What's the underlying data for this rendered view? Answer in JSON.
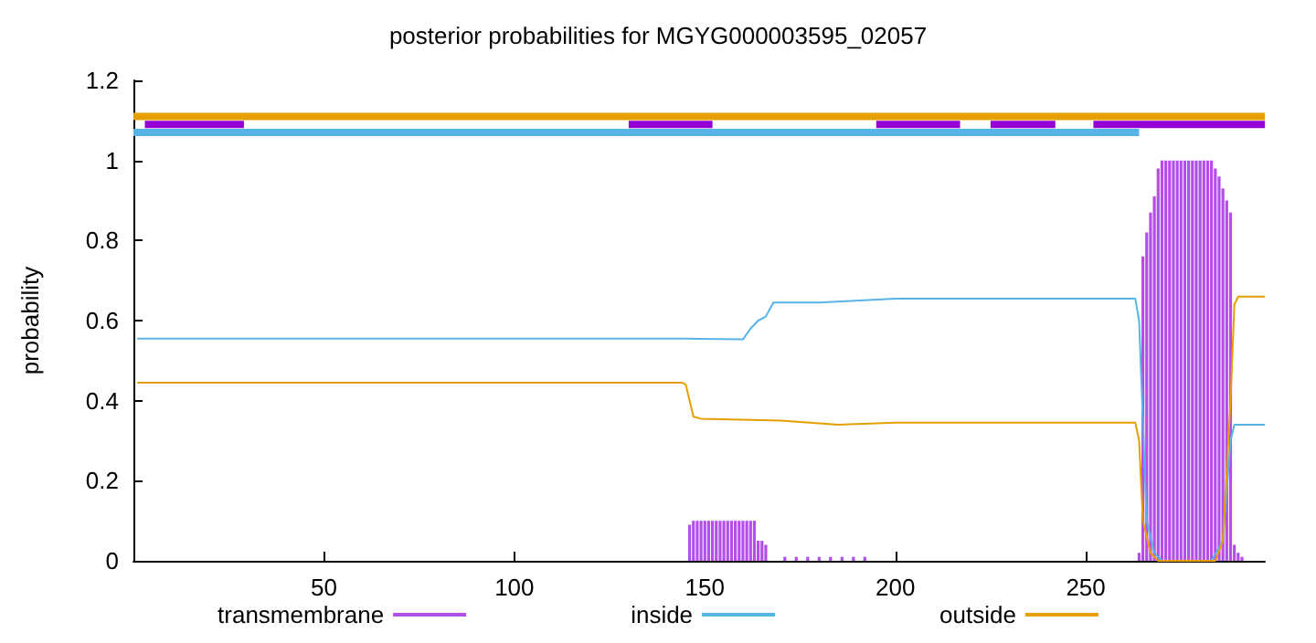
{
  "chart_data": {
    "type": "line",
    "title": "posterior probabilities for MGYG000003595_02057",
    "ylabel": "probability",
    "xlim": [
      0,
      297
    ],
    "xticks": [
      50,
      100,
      150,
      200,
      250
    ],
    "ylim": [
      0,
      1.2
    ],
    "yticks": [
      0,
      0.2,
      0.4,
      0.6,
      0.8,
      1,
      1.2
    ],
    "grid": false,
    "legend": "bottom",
    "marker": "none",
    "line_style": "solid",
    "series": [
      {
        "name": "transmembrane",
        "type": "bar",
        "color": "#b34ee8",
        "x": [
          146,
          147,
          148,
          149,
          150,
          151,
          152,
          153,
          154,
          155,
          156,
          157,
          158,
          159,
          160,
          161,
          162,
          163,
          164,
          165,
          166,
          171,
          174,
          177,
          180,
          183,
          186,
          189,
          192,
          264,
          265,
          266,
          267,
          268,
          269,
          270,
          271,
          272,
          273,
          274,
          275,
          276,
          277,
          278,
          279,
          280,
          281,
          282,
          283,
          284,
          285,
          286,
          287,
          288,
          289,
          290,
          291
        ],
        "values": [
          0.09,
          0.1,
          0.1,
          0.1,
          0.1,
          0.1,
          0.1,
          0.1,
          0.1,
          0.1,
          0.1,
          0.1,
          0.1,
          0.1,
          0.1,
          0.1,
          0.1,
          0.1,
          0.05,
          0.05,
          0.04,
          0.01,
          0.01,
          0.01,
          0.01,
          0.01,
          0.01,
          0.01,
          0.01,
          0.02,
          0.76,
          0.82,
          0.87,
          0.91,
          0.98,
          1,
          1,
          1,
          1,
          1,
          1,
          1,
          1,
          1,
          1,
          1,
          1,
          1,
          1,
          0.98,
          0.96,
          0.93,
          0.9,
          0.87,
          0.04,
          0.02,
          0.01
        ]
      },
      {
        "name": "inside",
        "color": "#56b4e9",
        "x": [
          1,
          145,
          160,
          162,
          164,
          166,
          168,
          180,
          200,
          263,
          264,
          266,
          268,
          270,
          283,
          286,
          288,
          289,
          297
        ],
        "values": [
          0.555,
          0.555,
          0.553,
          0.58,
          0.6,
          0.61,
          0.645,
          0.645,
          0.655,
          0.655,
          0.6,
          0.1,
          0.02,
          0,
          0,
          0.05,
          0.3,
          0.34,
          0.34
        ]
      },
      {
        "name": "outside",
        "color": "#e69f00",
        "x": [
          1,
          144,
          145,
          147,
          149,
          170,
          185,
          200,
          263,
          264,
          265,
          267,
          269,
          284,
          286,
          288,
          289,
          290,
          297
        ],
        "values": [
          0.445,
          0.445,
          0.44,
          0.36,
          0.355,
          0.35,
          0.34,
          0.345,
          0.345,
          0.3,
          0.1,
          0.02,
          0,
          0,
          0.05,
          0.4,
          0.64,
          0.66,
          0.66
        ]
      },
      {
        "color": "#e69f00",
        "x": [
          0,
          297
        ],
        "values": [
          1.11,
          1.11
        ]
      },
      {
        "color": "#56b4e9",
        "x": [
          0,
          264
        ],
        "values": [
          1.07,
          1.07
        ]
      },
      {
        "color": "#9400d3",
        "x": [
          3,
          29
        ],
        "values": [
          1.09,
          1.09
        ]
      },
      {
        "color": "#9400d3",
        "x": [
          130,
          152
        ],
        "values": [
          1.09,
          1.09
        ]
      },
      {
        "color": "#9400d3",
        "x": [
          195,
          217
        ],
        "values": [
          1.09,
          1.09
        ]
      },
      {
        "color": "#9400d3",
        "x": [
          225,
          242
        ],
        "values": [
          1.09,
          1.09
        ]
      },
      {
        "color": "#9400d3",
        "x": [
          252,
          297
        ],
        "values": [
          1.09,
          1.09
        ]
      }
    ]
  }
}
